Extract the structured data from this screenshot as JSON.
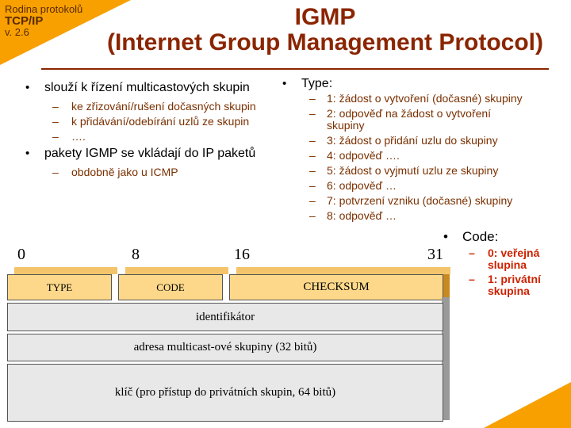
{
  "brand": {
    "line1": "Rodina protokolů",
    "line2": "TCP/IP",
    "line3": "v. 2.6"
  },
  "title": {
    "line1": "IGMP",
    "line2": "(Internet Group Management Protocol)"
  },
  "left": {
    "items": [
      {
        "text": "slouží k řízení multicastových skupin",
        "sub": [
          "ke zřizování/rušení dočasných skupin",
          "k přidávání/odebírání uzlů ze skupin",
          "…."
        ]
      },
      {
        "text": "pakety IGMP se vkládají do IP paketů",
        "sub": [
          "obdobně jako u ICMP"
        ]
      }
    ]
  },
  "right": {
    "heading": "Type:",
    "items": [
      "1: žádost o vytvoření (dočasné) skupiny",
      "2: odpověď na žádost o vytvoření skupiny",
      "3: žádost o přidání uzlu do skupiny",
      "4: odpověď ….",
      "5: žádost o vyjmutí uzlu ze skupiny",
      "6: odpověď …",
      "7: potvrzení vzniku (dočasné) skupiny",
      "8: odpověď …"
    ]
  },
  "code": {
    "heading": "Code:",
    "items": [
      "0: veřejná slupina",
      "1: privátní skupina"
    ]
  },
  "diagram": {
    "bits": [
      "0",
      "8",
      "16",
      "31"
    ],
    "type": "TYPE",
    "code": "CODE",
    "checksum": "CHECKSUM",
    "row1": "identifikátor",
    "row2": "adresa multicast-ové skupiny (32 bitů)",
    "row3": "klíč (pro přístup do privátních skupin, 64 bitů)"
  }
}
